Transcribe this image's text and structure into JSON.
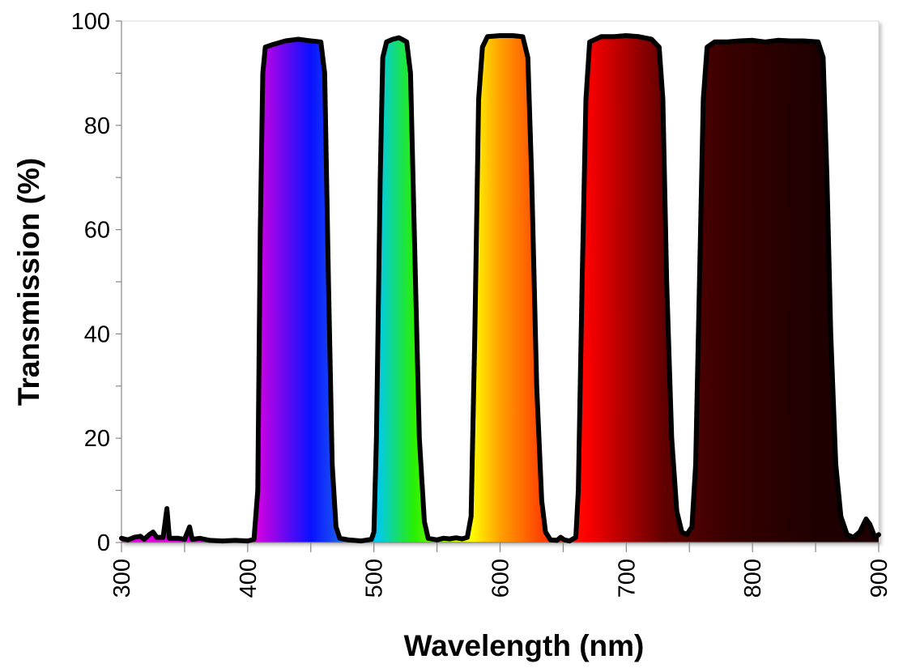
{
  "chart_data": {
    "type": "area",
    "title": "",
    "xlabel": "Wavelength (nm)",
    "ylabel": "Transmission (%)",
    "xlim": [
      300,
      900
    ],
    "ylim": [
      0,
      100
    ],
    "x_ticks": [
      300,
      400,
      500,
      600,
      700,
      800,
      900
    ],
    "y_ticks": [
      0,
      20,
      40,
      60,
      80,
      100
    ],
    "grid": false,
    "legend": "none",
    "fill": "spectral gradient by wavelength",
    "line_color": "#000000",
    "gradient_stops": [
      {
        "nm": 405,
        "color": "#e000e0"
      },
      {
        "nm": 450,
        "color": "#0810ff"
      },
      {
        "nm": 472,
        "color": "#1a5af0"
      },
      {
        "nm": 503,
        "color": "#00c8f0"
      },
      {
        "nm": 532,
        "color": "#28f000"
      },
      {
        "nm": 577,
        "color": "#ffff00"
      },
      {
        "nm": 600,
        "color": "#ffa000"
      },
      {
        "nm": 632,
        "color": "#ff4400"
      },
      {
        "nm": 668,
        "color": "#ff0000"
      },
      {
        "nm": 730,
        "color": "#600000"
      },
      {
        "nm": 780,
        "color": "#380000"
      },
      {
        "nm": 850,
        "color": "#1e0000"
      },
      {
        "nm": 900,
        "color": "#1e0000"
      }
    ],
    "series": [
      {
        "x": [
          300,
          305,
          310,
          315,
          318,
          322,
          325,
          328,
          333,
          336,
          338,
          345,
          350,
          354,
          356,
          362,
          370,
          380,
          390,
          400,
          405,
          408,
          410,
          412,
          414,
          420,
          430,
          440,
          450,
          458,
          461,
          464,
          467,
          470,
          473,
          480,
          490,
          498,
          500,
          502,
          505,
          507,
          510,
          515,
          520,
          526,
          529,
          532,
          536,
          540,
          543,
          550,
          555,
          560,
          565,
          570,
          574,
          577,
          580,
          583,
          586,
          590,
          600,
          610,
          618,
          622,
          625,
          629,
          633,
          636,
          640,
          645,
          648,
          651,
          655,
          660,
          662,
          665,
          668,
          671,
          680,
          690,
          700,
          710,
          720,
          726,
          729,
          732,
          736,
          740,
          744,
          748,
          752,
          755,
          758,
          761,
          764,
          770,
          780,
          790,
          800,
          810,
          820,
          830,
          840,
          852,
          856,
          859,
          862,
          866,
          870,
          875,
          880,
          885,
          890,
          893,
          897,
          900
        ],
        "y": [
          0.8,
          0.5,
          1,
          1.2,
          0.6,
          1.5,
          2,
          1,
          1,
          6.5,
          0.8,
          0.8,
          0.6,
          3,
          0.6,
          0.8,
          0.4,
          0.3,
          0.4,
          0.3,
          0.6,
          10,
          60,
          90,
          95,
          95.5,
          96.2,
          96.5,
          96.2,
          96,
          90,
          50,
          15,
          3,
          0.8,
          0.5,
          0.3,
          0.6,
          2,
          20,
          70,
          93,
          96,
          96.5,
          96.8,
          96,
          90,
          60,
          20,
          4,
          0.8,
          0.5,
          0.8,
          0.7,
          0.9,
          0.7,
          1,
          5,
          40,
          85,
          95,
          97,
          97.2,
          97.2,
          97,
          93,
          70,
          30,
          8,
          2,
          0.5,
          0.4,
          1,
          0.5,
          0.3,
          1,
          10,
          50,
          85,
          96,
          97,
          97,
          97.2,
          97,
          96.5,
          95,
          85,
          50,
          20,
          6,
          2,
          1.5,
          3,
          15,
          50,
          85,
          95,
          96,
          96,
          96.2,
          96.3,
          96,
          96.3,
          96.2,
          96.2,
          96,
          93,
          70,
          40,
          15,
          5,
          1.5,
          1,
          2,
          4.5,
          3.5,
          1,
          1.5
        ]
      }
    ]
  }
}
